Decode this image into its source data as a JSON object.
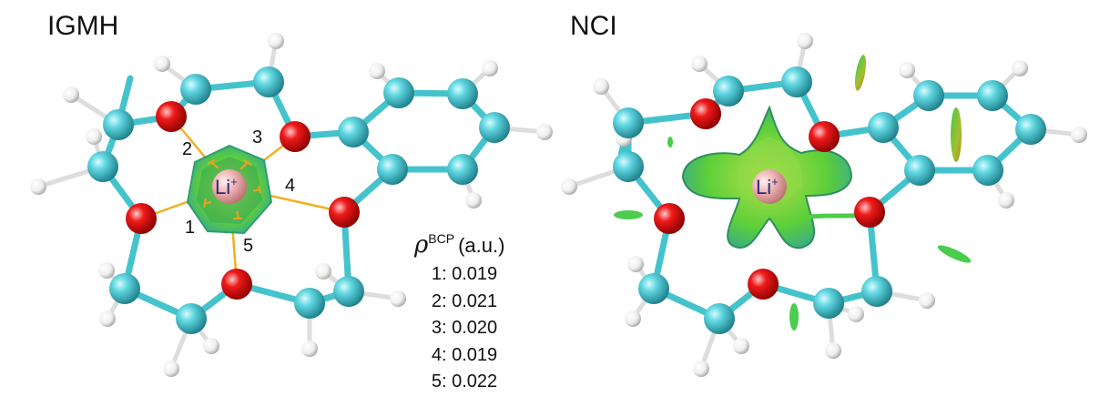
{
  "panels": {
    "left_title": "IGMH",
    "right_title": "NCI"
  },
  "ion_label": "Li",
  "ion_charge": "+",
  "bcp_labels": [
    "1",
    "2",
    "3",
    "4",
    "5"
  ],
  "legend": {
    "symbol": "ρ",
    "superscript": "BCP",
    "unit": "(a.u.)",
    "rows": [
      "1: 0.019",
      "2: 0.021",
      "3: 0.020",
      "4: 0.019",
      "5: 0.022"
    ]
  },
  "colors": {
    "carbon": "#3cc0cc",
    "oxygen": "#e01010",
    "hydrogen": "#f2f2f2",
    "lithium": "#f0b0b0",
    "isosurface": "#5fcf3a",
    "bond_li": "#f0b020"
  }
}
